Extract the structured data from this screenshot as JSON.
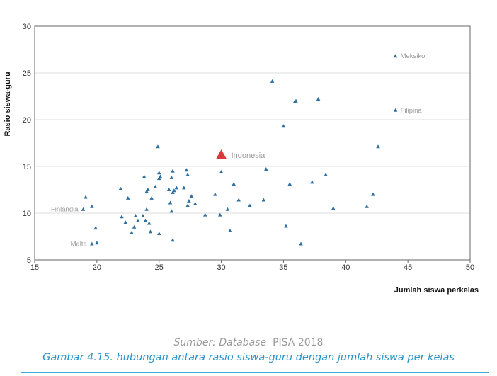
{
  "chart_data": {
    "type": "scatter",
    "title": "",
    "xlabel": "Jumlah siswa perkelas",
    "ylabel": "Rasio siswa-guru",
    "xlim": [
      15,
      50
    ],
    "ylim": [
      5,
      30
    ],
    "xticks": [
      "15",
      "20",
      "25",
      "30",
      "35",
      "40",
      "45",
      "50"
    ],
    "yticks": [
      "5",
      "10",
      "15",
      "20",
      "25",
      "30"
    ],
    "grid": "horizontal",
    "legend": "none",
    "marker_color": "#2f6f9f",
    "highlight_color": "#d83a3a",
    "annotation_color": "#9a9a9a",
    "highlight": {
      "label": "Indonesia",
      "x": 30.0,
      "y": 16.2
    },
    "labeled_points": [
      {
        "label": "Meksiko",
        "x": 44.0,
        "y": 26.8
      },
      {
        "label": "Filipina",
        "x": 44.0,
        "y": 21.0
      },
      {
        "label": "Finlandia",
        "x": 18.9,
        "y": 10.4
      },
      {
        "label": "Malta",
        "x": 19.6,
        "y": 6.7
      }
    ],
    "points": [
      {
        "x": 19.1,
        "y": 11.7
      },
      {
        "x": 19.6,
        "y": 10.7
      },
      {
        "x": 19.9,
        "y": 8.4
      },
      {
        "x": 20.0,
        "y": 6.8
      },
      {
        "x": 21.9,
        "y": 12.6
      },
      {
        "x": 22.0,
        "y": 9.6
      },
      {
        "x": 22.3,
        "y": 9.0
      },
      {
        "x": 22.5,
        "y": 11.6
      },
      {
        "x": 22.8,
        "y": 7.9
      },
      {
        "x": 23.0,
        "y": 8.5
      },
      {
        "x": 23.1,
        "y": 9.7
      },
      {
        "x": 23.3,
        "y": 9.2
      },
      {
        "x": 23.7,
        "y": 9.7
      },
      {
        "x": 23.8,
        "y": 13.9
      },
      {
        "x": 23.9,
        "y": 9.2
      },
      {
        "x": 24.0,
        "y": 10.4
      },
      {
        "x": 24.0,
        "y": 12.3
      },
      {
        "x": 24.1,
        "y": 12.5
      },
      {
        "x": 24.2,
        "y": 8.9
      },
      {
        "x": 24.3,
        "y": 8.0
      },
      {
        "x": 24.4,
        "y": 11.6
      },
      {
        "x": 24.7,
        "y": 12.8
      },
      {
        "x": 24.9,
        "y": 17.1
      },
      {
        "x": 25.0,
        "y": 13.7
      },
      {
        "x": 25.0,
        "y": 14.3
      },
      {
        "x": 25.0,
        "y": 7.8
      },
      {
        "x": 25.1,
        "y": 13.9
      },
      {
        "x": 25.8,
        "y": 12.5
      },
      {
        "x": 25.9,
        "y": 11.1
      },
      {
        "x": 26.0,
        "y": 10.2
      },
      {
        "x": 26.0,
        "y": 13.8
      },
      {
        "x": 26.1,
        "y": 7.1
      },
      {
        "x": 26.1,
        "y": 14.5
      },
      {
        "x": 26.1,
        "y": 12.2
      },
      {
        "x": 26.2,
        "y": 12.4
      },
      {
        "x": 26.4,
        "y": 12.7
      },
      {
        "x": 27.0,
        "y": 12.7
      },
      {
        "x": 27.2,
        "y": 14.6
      },
      {
        "x": 27.3,
        "y": 14.1
      },
      {
        "x": 27.3,
        "y": 10.8
      },
      {
        "x": 27.4,
        "y": 11.3
      },
      {
        "x": 27.6,
        "y": 11.8
      },
      {
        "x": 27.9,
        "y": 11.0
      },
      {
        "x": 28.7,
        "y": 9.8
      },
      {
        "x": 29.5,
        "y": 12.0
      },
      {
        "x": 29.9,
        "y": 9.8
      },
      {
        "x": 30.0,
        "y": 14.4
      },
      {
        "x": 30.5,
        "y": 10.4
      },
      {
        "x": 30.7,
        "y": 8.1
      },
      {
        "x": 31.0,
        "y": 13.1
      },
      {
        "x": 31.4,
        "y": 11.4
      },
      {
        "x": 32.3,
        "y": 10.8
      },
      {
        "x": 33.4,
        "y": 11.4
      },
      {
        "x": 33.6,
        "y": 14.7
      },
      {
        "x": 34.1,
        "y": 24.1
      },
      {
        "x": 35.0,
        "y": 19.3
      },
      {
        "x": 35.2,
        "y": 8.6
      },
      {
        "x": 35.5,
        "y": 13.1
      },
      {
        "x": 35.9,
        "y": 21.9
      },
      {
        "x": 36.0,
        "y": 22.0
      },
      {
        "x": 36.4,
        "y": 6.7
      },
      {
        "x": 37.3,
        "y": 13.3
      },
      {
        "x": 37.8,
        "y": 22.2
      },
      {
        "x": 38.4,
        "y": 14.1
      },
      {
        "x": 39.0,
        "y": 10.5
      },
      {
        "x": 41.7,
        "y": 10.7
      },
      {
        "x": 42.2,
        "y": 12.0
      },
      {
        "x": 42.6,
        "y": 17.1
      }
    ]
  },
  "footer": {
    "source_italic": "Sumber: Database",
    "source_rest": "  PISA 2018",
    "caption": "Gambar 4.15. hubungan antara rasio siswa-guru dengan jumlah siswa per kelas"
  }
}
